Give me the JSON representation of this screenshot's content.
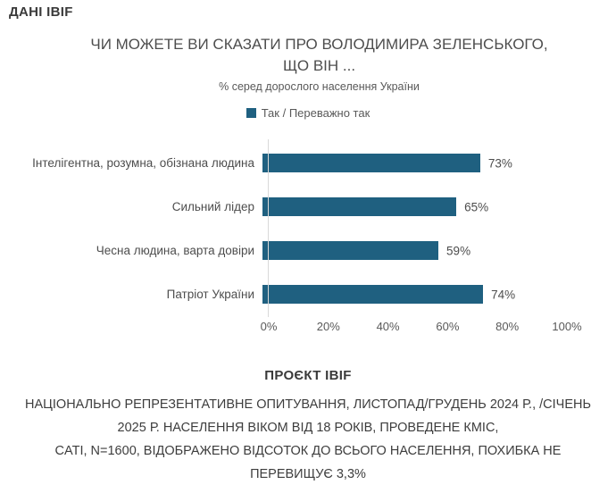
{
  "header": {
    "brand": "ДАНІ IBIF"
  },
  "chart": {
    "title_line1": "ЧИ МОЖЕТЕ ВИ СКАЗАТИ ПРО ВОЛОДИМИРА ЗЕЛЕНСЬКОГО,",
    "title_line2": "ЩО ВІН ...",
    "subtitle": "% серед дорослого населення України",
    "legend_label": "Так / Переважно так"
  },
  "chart_data": {
    "type": "bar",
    "orientation": "horizontal",
    "title": "ЧИ МОЖЕТЕ ВИ СКАЗАТИ ПРО ВОЛОДИМИРА ЗЕЛЕНСЬКОГО, ЩО ВІН ...",
    "subtitle": "% серед дорослого населення України",
    "legend": [
      "Так / Переважно так"
    ],
    "legend_position": "top",
    "categories": [
      "Інтелігентна, розумна, обізнана людина",
      "Сильний лідер",
      "Чесна людина, варта довіри",
      "Патріот України"
    ],
    "values": [
      73,
      65,
      59,
      74
    ],
    "value_labels": [
      "73%",
      "65%",
      "59%",
      "74%"
    ],
    "xlabel": "",
    "ylabel": "",
    "xlim": [
      0,
      100
    ],
    "x_ticks": [
      {
        "label": "0%",
        "value": 0
      },
      {
        "label": "20%",
        "value": 20
      },
      {
        "label": "40%",
        "value": 40
      },
      {
        "label": "60%",
        "value": 60
      },
      {
        "label": "80%",
        "value": 80
      },
      {
        "label": "100%",
        "value": 100
      }
    ],
    "grid": false,
    "bar_color": "#1F6080",
    "axis_color": "#d9d9d9"
  },
  "footer": {
    "heading": "ПРОЄКТ IBIF",
    "lines": [
      "НАЦІОНАЛЬНО РЕПРЕЗЕНТАТИВНЕ ОПИТУВАННЯ, ЛИСТОПАД/ГРУДЕНЬ 2024 Р., /СІЧЕНЬ",
      "2025 Р. НАСЕЛЕННЯ ВІКОМ ВІД 18 РОКІВ, ПРОВЕДЕНЕ КМІС,",
      "CATI, N=1600, ВІДОБРАЖЕНО ВІДСОТОК ДО ВСЬОГО НАСЕЛЕННЯ, ПОХИБКА НЕ",
      "ПЕРЕВИЩУЄ 3,3%"
    ]
  }
}
